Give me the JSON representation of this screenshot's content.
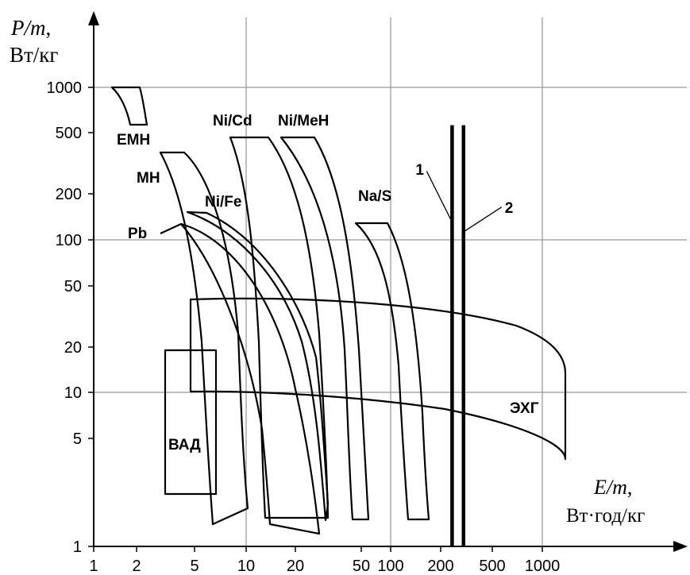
{
  "chart_data": {
    "type": "area",
    "x_axis": {
      "title_main": "E/m",
      "title_unit": "Вт·год/кг",
      "scale": "log",
      "range": [
        1,
        1800
      ],
      "ticks": [
        1,
        2,
        5,
        10,
        20,
        50,
        100,
        200,
        500,
        1000
      ],
      "tick_labels": [
        "1",
        "2",
        "5",
        "10",
        "20",
        "50",
        "100",
        "200",
        "500",
        "1000"
      ]
    },
    "y_axis": {
      "title_main": "P/m",
      "title_unit": "Вт/кг",
      "scale": "log",
      "range": [
        1,
        3000
      ],
      "ticks": [
        1,
        5,
        10,
        20,
        50,
        100,
        200,
        500,
        1000
      ],
      "tick_labels": [
        "1",
        "5",
        "10",
        "20",
        "50",
        "100",
        "200",
        "500",
        "1000"
      ]
    },
    "grid": {
      "vertical": [
        10,
        100,
        1000
      ],
      "horizontal": [
        10,
        100,
        1000
      ]
    },
    "regions": [
      {
        "name": "ЕМН",
        "corners": {
          "x": [
            1.5,
            2.3
          ],
          "y": [
            550,
            1000
          ]
        }
      },
      {
        "name": "МН",
        "corners": {
          "x": [
            3.5,
            9.5
          ],
          "y": [
            1.5,
            350
          ]
        }
      },
      {
        "name": "Pb",
        "corners": {
          "x": [
            3.2,
            14
          ],
          "y": [
            1.5,
            120
          ]
        }
      },
      {
        "name": "Ni/Fe",
        "corners": {
          "x": [
            4.8,
            40
          ],
          "y": [
            1.3,
            150
          ]
        }
      },
      {
        "name": "Ni/Cd",
        "corners": {
          "x": [
            7.5,
            38
          ],
          "y": [
            1.6,
            470
          ]
        }
      },
      {
        "name": "Ni/MeH",
        "corners": {
          "x": [
            18,
            66
          ],
          "y": [
            1.6,
            470
          ]
        }
      },
      {
        "name": "Na/S",
        "corners": {
          "x": [
            55,
            175
          ],
          "y": [
            1.6,
            130
          ]
        }
      },
      {
        "name": "ВАД",
        "corners": {
          "x": [
            3.9,
            6.6
          ],
          "y": [
            2.5,
            19
          ]
        }
      },
      {
        "name": "ЭХГ",
        "corners": {
          "x": [
            4.3,
            1400
          ],
          "y": [
            3.8,
            40
          ]
        }
      }
    ],
    "vertical_lines": [
      {
        "name": "1",
        "x": 245,
        "y_top": 560
      },
      {
        "name": "2",
        "x": 300,
        "y_top": 560
      }
    ]
  }
}
